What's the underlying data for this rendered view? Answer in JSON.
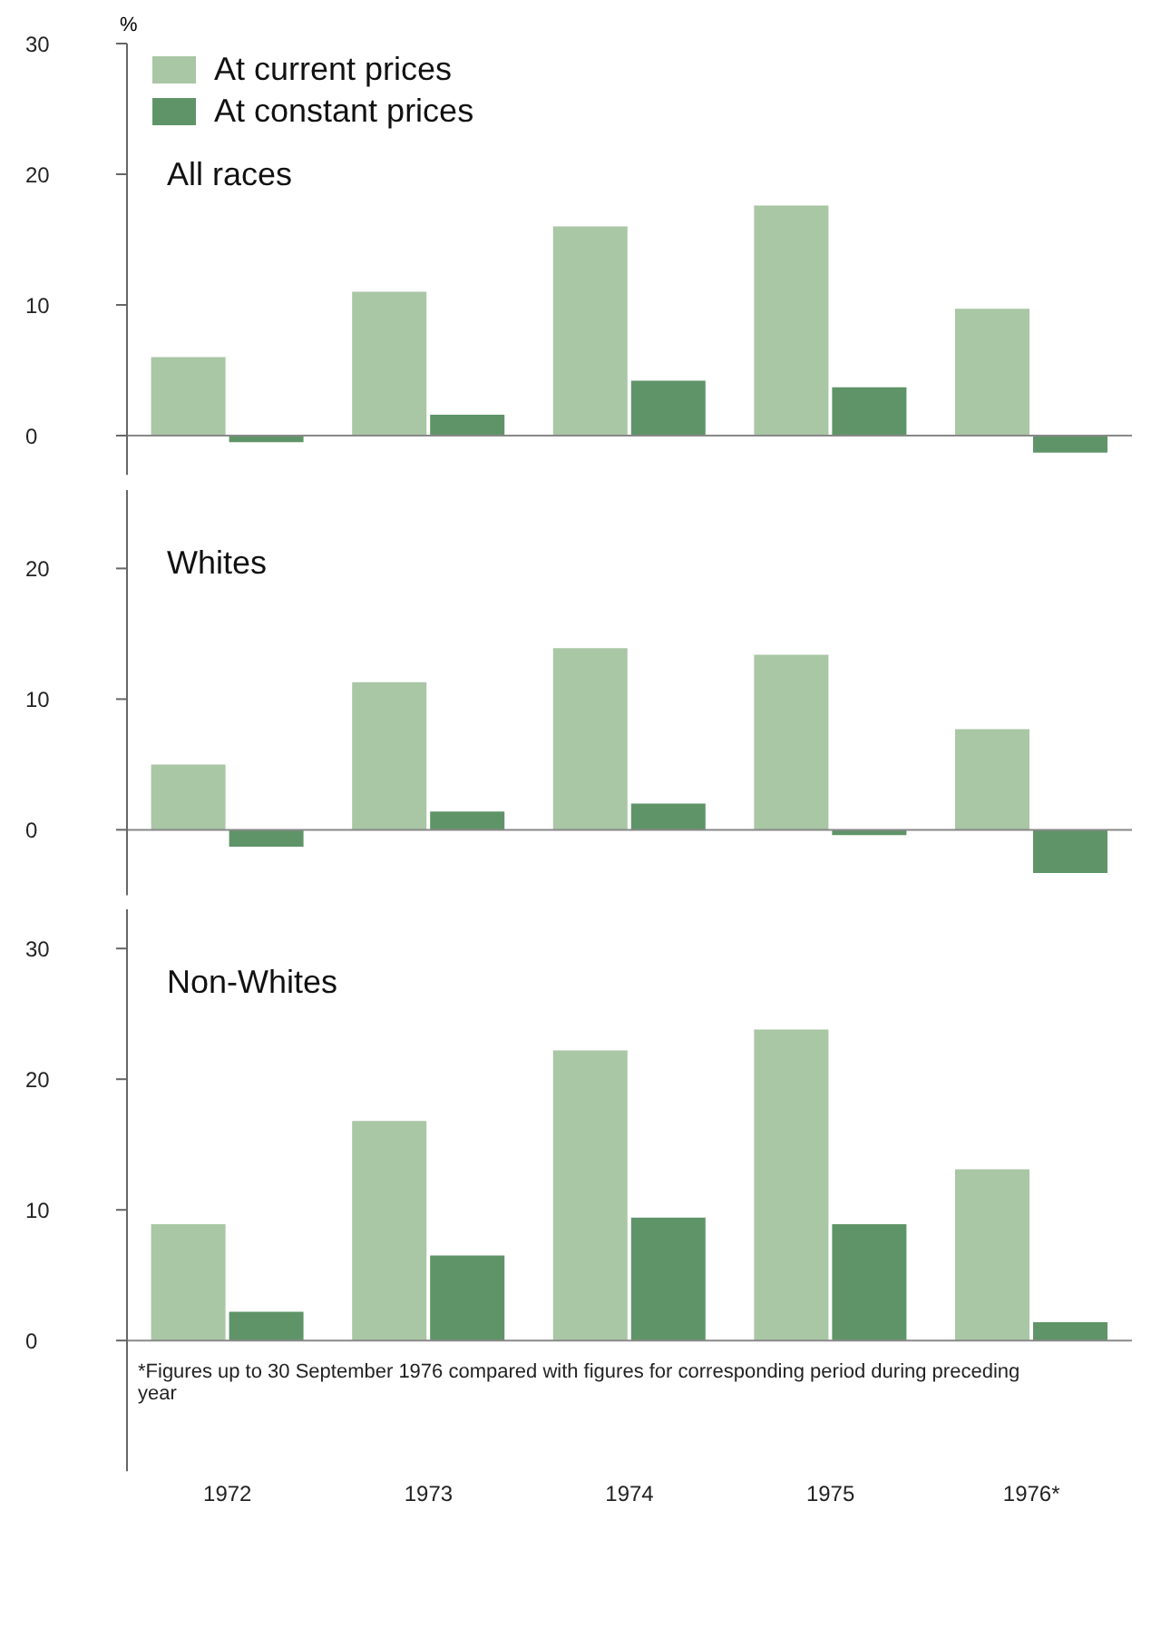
{
  "chart_data": [
    {
      "type": "bar",
      "title": "All races",
      "ylabel": "%",
      "categories": [
        null,
        null,
        null,
        null,
        null
      ],
      "series": [
        {
          "name": "At current prices",
          "color": "#a9c6a5",
          "values": [
            6.0,
            11.0,
            16.0,
            17.6,
            9.7
          ]
        },
        {
          "name": "At constant prices",
          "color": "#5f9468",
          "values": [
            -0.5,
            1.6,
            4.2,
            3.7,
            -1.3
          ]
        }
      ],
      "ylim": [
        -3,
        30
      ],
      "yticks": [
        0,
        10,
        20,
        30
      ],
      "legend": "top left",
      "tick_labels": "y",
      "ref_lines": [
        {
          "axis": "y",
          "value": 0
        }
      ]
    },
    {
      "type": "bar",
      "title": "Whites",
      "categories": [
        null,
        null,
        null,
        null,
        null
      ],
      "series": [
        {
          "color": "#a9c6a5",
          "values": [
            5.0,
            11.3,
            13.9,
            13.4,
            7.7
          ]
        },
        {
          "color": "#5f9468",
          "values": [
            -1.3,
            1.4,
            2.0,
            -0.4,
            -3.3
          ]
        }
      ],
      "ylim": [
        -5,
        26
      ],
      "yticks": [
        0,
        10,
        20
      ],
      "tick_labels": "y",
      "ref_lines": [
        {
          "axis": "y",
          "value": 0
        }
      ]
    },
    {
      "type": "bar",
      "title": "Non-Whites",
      "categories": [
        "1972",
        "1973",
        "1974",
        "1975",
        "1976*"
      ],
      "series": [
        {
          "color": "#a9c6a5",
          "values": [
            8.9,
            16.8,
            22.2,
            23.8,
            13.1
          ]
        },
        {
          "color": "#5f9468",
          "values": [
            2.2,
            6.5,
            9.4,
            8.9,
            1.4
          ]
        }
      ],
      "ylim": [
        -10,
        33
      ],
      "yticks": [
        0,
        10,
        20,
        30
      ],
      "ref_lines": [
        {
          "axis": "y",
          "value": 0
        }
      ],
      "annotations": [
        "*Figures up to 30 September 1976 compared with figures for corresponding period during preceding year"
      ]
    }
  ]
}
